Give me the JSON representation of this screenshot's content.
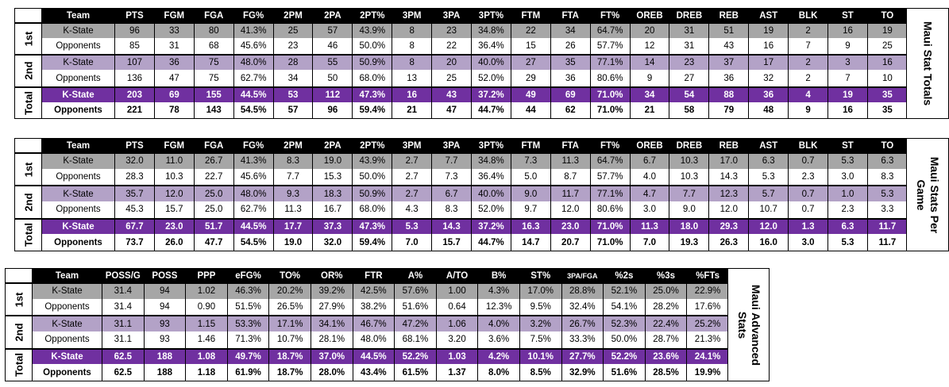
{
  "totals": {
    "title": "Maui Stat Totals",
    "columns": [
      "Team",
      "PTS",
      "FGM",
      "FGA",
      "FG%",
      "2PM",
      "2PA",
      "2PT%",
      "3PM",
      "3PA",
      "3PT%",
      "FTM",
      "FTA",
      "FT%",
      "OREB",
      "DREB",
      "REB",
      "AST",
      "BLK",
      "ST",
      "TO"
    ],
    "segments": [
      "1st",
      "2nd",
      "Total"
    ],
    "rows": [
      [
        "K-State",
        "96",
        "33",
        "80",
        "41.3%",
        "25",
        "57",
        "43.9%",
        "8",
        "23",
        "34.8%",
        "22",
        "34",
        "64.7%",
        "20",
        "31",
        "51",
        "19",
        "2",
        "16",
        "19"
      ],
      [
        "Opponents",
        "85",
        "31",
        "68",
        "45.6%",
        "23",
        "46",
        "50.0%",
        "8",
        "22",
        "36.4%",
        "15",
        "26",
        "57.7%",
        "12",
        "31",
        "43",
        "16",
        "7",
        "9",
        "25"
      ],
      [
        "K-State",
        "107",
        "36",
        "75",
        "48.0%",
        "28",
        "55",
        "50.9%",
        "8",
        "20",
        "40.0%",
        "27",
        "35",
        "77.1%",
        "14",
        "23",
        "37",
        "17",
        "2",
        "3",
        "16"
      ],
      [
        "Opponents",
        "136",
        "47",
        "75",
        "62.7%",
        "34",
        "50",
        "68.0%",
        "13",
        "25",
        "52.0%",
        "29",
        "36",
        "80.6%",
        "9",
        "27",
        "36",
        "32",
        "2",
        "7",
        "10"
      ],
      [
        "K-State",
        "203",
        "69",
        "155",
        "44.5%",
        "53",
        "112",
        "47.3%",
        "16",
        "43",
        "37.2%",
        "49",
        "69",
        "71.0%",
        "34",
        "54",
        "88",
        "36",
        "4",
        "19",
        "35"
      ],
      [
        "Opponents",
        "221",
        "78",
        "143",
        "54.5%",
        "57",
        "96",
        "59.4%",
        "21",
        "47",
        "44.7%",
        "44",
        "62",
        "71.0%",
        "21",
        "58",
        "79",
        "48",
        "9",
        "16",
        "35"
      ]
    ]
  },
  "per_game": {
    "title": "Maui Stats Per Game",
    "columns": [
      "Team",
      "PTS",
      "FGM",
      "FGA",
      "FG%",
      "2PM",
      "2PA",
      "2PT%",
      "3PM",
      "3PA",
      "3PT%",
      "FTM",
      "FTA",
      "FT%",
      "OREB",
      "DREB",
      "REB",
      "AST",
      "BLK",
      "ST",
      "TO"
    ],
    "segments": [
      "1st",
      "2nd",
      "Total"
    ],
    "rows": [
      [
        "K-State",
        "32.0",
        "11.0",
        "26.7",
        "41.3%",
        "8.3",
        "19.0",
        "43.9%",
        "2.7",
        "7.7",
        "34.8%",
        "7.3",
        "11.3",
        "64.7%",
        "6.7",
        "10.3",
        "17.0",
        "6.3",
        "0.7",
        "5.3",
        "6.3"
      ],
      [
        "Opponents",
        "28.3",
        "10.3",
        "22.7",
        "45.6%",
        "7.7",
        "15.3",
        "50.0%",
        "2.7",
        "7.3",
        "36.4%",
        "5.0",
        "8.7",
        "57.7%",
        "4.0",
        "10.3",
        "14.3",
        "5.3",
        "2.3",
        "3.0",
        "8.3"
      ],
      [
        "K-State",
        "35.7",
        "12.0",
        "25.0",
        "48.0%",
        "9.3",
        "18.3",
        "50.9%",
        "2.7",
        "6.7",
        "40.0%",
        "9.0",
        "11.7",
        "77.1%",
        "4.7",
        "7.7",
        "12.3",
        "5.7",
        "0.7",
        "1.0",
        "5.3"
      ],
      [
        "Opponents",
        "45.3",
        "15.7",
        "25.0",
        "62.7%",
        "11.3",
        "16.7",
        "68.0%",
        "4.3",
        "8.3",
        "52.0%",
        "9.7",
        "12.0",
        "80.6%",
        "3.0",
        "9.0",
        "12.0",
        "10.7",
        "0.7",
        "2.3",
        "3.3"
      ],
      [
        "K-State",
        "67.7",
        "23.0",
        "51.7",
        "44.5%",
        "17.7",
        "37.3",
        "47.3%",
        "5.3",
        "14.3",
        "37.2%",
        "16.3",
        "23.0",
        "71.0%",
        "11.3",
        "18.0",
        "29.3",
        "12.0",
        "1.3",
        "6.3",
        "11.7"
      ],
      [
        "Opponents",
        "73.7",
        "26.0",
        "47.7",
        "54.5%",
        "19.0",
        "32.0",
        "59.4%",
        "7.0",
        "15.7",
        "44.7%",
        "14.7",
        "20.7",
        "71.0%",
        "7.0",
        "19.3",
        "26.3",
        "16.0",
        "3.0",
        "5.3",
        "11.7"
      ]
    ]
  },
  "advanced": {
    "title": "Maui Advanced Stats",
    "columns": [
      "Team",
      "POSS/G",
      "POSS",
      "PPP",
      "eFG%",
      "TO%",
      "OR%",
      "FTR",
      "A%",
      "A/TO",
      "B%",
      "ST%",
      "3PA/FGA",
      "%2s",
      "%3s",
      "%FTs"
    ],
    "segments": [
      "1st",
      "2nd",
      "Total"
    ],
    "rows": [
      [
        "K-State",
        "31.4",
        "94",
        "1.02",
        "46.3%",
        "20.2%",
        "39.2%",
        "42.5%",
        "57.6%",
        "1.00",
        "4.3%",
        "17.0%",
        "28.8%",
        "52.1%",
        "25.0%",
        "22.9%"
      ],
      [
        "Opponents",
        "31.4",
        "94",
        "0.90",
        "51.5%",
        "26.5%",
        "27.9%",
        "38.2%",
        "51.6%",
        "0.64",
        "12.3%",
        "9.5%",
        "32.4%",
        "54.1%",
        "28.2%",
        "17.6%"
      ],
      [
        "K-State",
        "31.1",
        "93",
        "1.15",
        "53.3%",
        "17.1%",
        "34.1%",
        "46.7%",
        "47.2%",
        "1.06",
        "4.0%",
        "3.2%",
        "26.7%",
        "52.3%",
        "22.4%",
        "25.2%"
      ],
      [
        "Opponents",
        "31.1",
        "93",
        "1.46",
        "71.3%",
        "10.7%",
        "28.1%",
        "48.0%",
        "68.1%",
        "3.20",
        "3.6%",
        "7.5%",
        "33.3%",
        "50.0%",
        "28.7%",
        "21.3%"
      ],
      [
        "K-State",
        "62.5",
        "188",
        "1.08",
        "49.7%",
        "18.7%",
        "37.0%",
        "44.5%",
        "52.2%",
        "1.03",
        "4.2%",
        "10.1%",
        "27.7%",
        "52.2%",
        "23.6%",
        "24.1%"
      ],
      [
        "Opponents",
        "62.5",
        "188",
        "1.18",
        "61.9%",
        "18.7%",
        "28.0%",
        "43.4%",
        "61.5%",
        "1.37",
        "8.0%",
        "8.5%",
        "32.9%",
        "51.6%",
        "28.5%",
        "19.9%"
      ]
    ]
  },
  "colors": {
    "header": "#000000",
    "first_half_kstate": "#a6a6a6",
    "second_half_kstate": "#b3a2c7",
    "total_kstate": "#7030a0",
    "opponents": "#ffffff"
  }
}
